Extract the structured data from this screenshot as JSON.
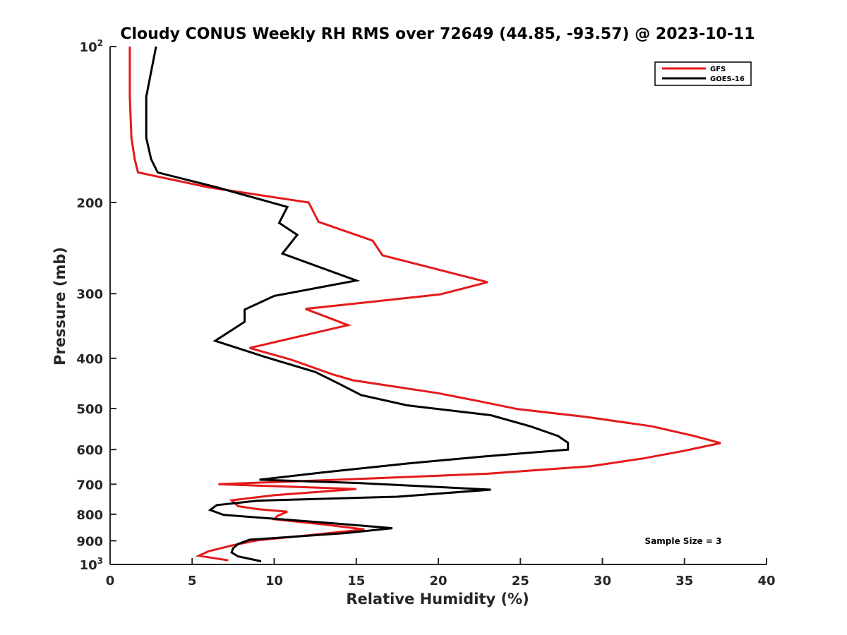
{
  "chart_data": {
    "type": "line",
    "title": "Cloudy CONUS Weekly RH RMS over 72649 (44.85, -93.57) @ 2023-10-11",
    "xlabel": "Relative Humidity (%)",
    "ylabel": "Pressure (mb)",
    "xlim": [
      0,
      40
    ],
    "ylim": [
      100,
      1000
    ],
    "yscale": "log",
    "y_reversed": true,
    "grid": false,
    "legend_position": "top-right",
    "x_ticks": [
      0,
      5,
      10,
      15,
      20,
      25,
      30,
      35,
      40
    ],
    "y_ticks": [
      {
        "value": 100,
        "base": "10",
        "exp": "2"
      },
      {
        "value": 200,
        "label": "200"
      },
      {
        "value": 300,
        "label": "300"
      },
      {
        "value": 400,
        "label": "400"
      },
      {
        "value": 500,
        "label": "500"
      },
      {
        "value": 600,
        "label": "600"
      },
      {
        "value": 700,
        "label": "700"
      },
      {
        "value": 800,
        "label": "800"
      },
      {
        "value": 900,
        "label": "900"
      },
      {
        "value": 1000,
        "base": "10",
        "exp": "3"
      }
    ],
    "series": [
      {
        "name": "GFS",
        "color": "#e41a1c",
        "points": [
          [
            1.2,
            100
          ],
          [
            1.2,
            125
          ],
          [
            1.3,
            150
          ],
          [
            1.5,
            165
          ],
          [
            1.7,
            175
          ],
          [
            6.0,
            187
          ],
          [
            12.1,
            200
          ],
          [
            12.7,
            218
          ],
          [
            16.0,
            237
          ],
          [
            16.6,
            253
          ],
          [
            23.0,
            285
          ],
          [
            20.1,
            301
          ],
          [
            11.9,
            321
          ],
          [
            14.5,
            345
          ],
          [
            8.5,
            382
          ],
          [
            11.0,
            402
          ],
          [
            13.5,
            429
          ],
          [
            14.8,
            441
          ],
          [
            20.0,
            467
          ],
          [
            22.5,
            484
          ],
          [
            24.8,
            501
          ],
          [
            29.0,
            519
          ],
          [
            33.0,
            541
          ],
          [
            35.5,
            564
          ],
          [
            37.2,
            583
          ],
          [
            35.0,
            603
          ],
          [
            32.5,
            624
          ],
          [
            29.3,
            646
          ],
          [
            23.0,
            668
          ],
          [
            16.0,
            682
          ],
          [
            6.6,
            700
          ],
          [
            15.0,
            715
          ],
          [
            10.0,
            735
          ],
          [
            7.4,
            752
          ],
          [
            7.8,
            772
          ],
          [
            9.0,
            782
          ],
          [
            10.8,
            791
          ],
          [
            10.2,
            806
          ],
          [
            10.0,
            818
          ],
          [
            13.0,
            837
          ],
          [
            15.5,
            856
          ],
          [
            12.0,
            879
          ],
          [
            9.0,
            898
          ],
          [
            7.5,
            918
          ],
          [
            6.0,
            943
          ],
          [
            5.4,
            962
          ],
          [
            7.2,
            982
          ]
        ]
      },
      {
        "name": "GOES-16",
        "color": "#000000",
        "points": [
          [
            2.8,
            100
          ],
          [
            2.2,
            125
          ],
          [
            2.2,
            150
          ],
          [
            2.5,
            165
          ],
          [
            2.9,
            175
          ],
          [
            6.5,
            187
          ],
          [
            10.8,
            204
          ],
          [
            10.3,
            219
          ],
          [
            11.4,
            231
          ],
          [
            10.5,
            251
          ],
          [
            15.0,
            283
          ],
          [
            10.0,
            303
          ],
          [
            8.2,
            322
          ],
          [
            8.2,
            340
          ],
          [
            6.4,
            370
          ],
          [
            9.5,
            398
          ],
          [
            12.5,
            425
          ],
          [
            13.9,
            447
          ],
          [
            15.3,
            471
          ],
          [
            18.1,
            493
          ],
          [
            23.2,
            515
          ],
          [
            25.6,
            541
          ],
          [
            27.3,
            565
          ],
          [
            27.9,
            582
          ],
          [
            27.9,
            600
          ],
          [
            22.7,
            619
          ],
          [
            18.2,
            638
          ],
          [
            13.0,
            664
          ],
          [
            9.1,
            686
          ],
          [
            15.0,
            696
          ],
          [
            23.2,
            717
          ],
          [
            17.5,
            740
          ],
          [
            9.0,
            753
          ],
          [
            6.5,
            768
          ],
          [
            6.1,
            785
          ],
          [
            6.9,
            802
          ],
          [
            13.0,
            830
          ],
          [
            17.2,
            851
          ],
          [
            14.3,
            870
          ],
          [
            8.5,
            896
          ],
          [
            7.8,
            913
          ],
          [
            7.5,
            930
          ],
          [
            7.4,
            948
          ],
          [
            7.8,
            965
          ],
          [
            9.2,
            986
          ]
        ]
      }
    ],
    "annotation": "Sample Size = 3"
  }
}
